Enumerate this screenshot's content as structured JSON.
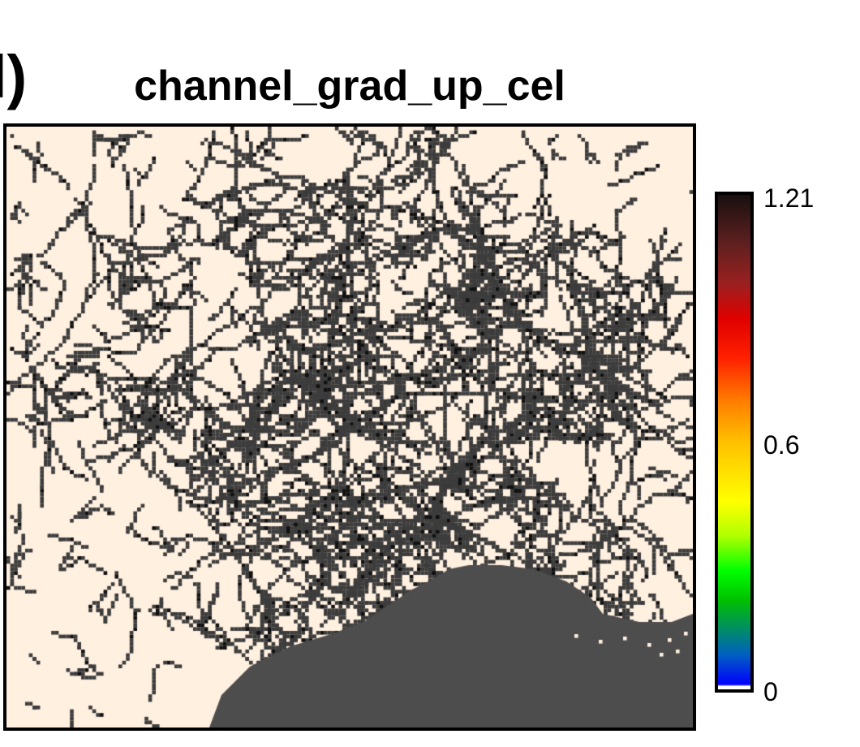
{
  "panel_label": "l)",
  "title": "channel_grad_up_cel",
  "colors": {
    "background": "#fff0e0",
    "channel": "#3c3c3c",
    "water": "#4d4d4d",
    "frame": "#000000"
  },
  "colorbar": {
    "min": 0,
    "max": 1.21,
    "ticks": [
      "1.21",
      "0.6",
      "0"
    ],
    "palette": [
      "#ffffff",
      "#0000ff",
      "#00c000",
      "#00ff00",
      "#ffff00",
      "#ffc000",
      "#ff8000",
      "#ff0000",
      "#9b2020",
      "#181010"
    ]
  }
}
